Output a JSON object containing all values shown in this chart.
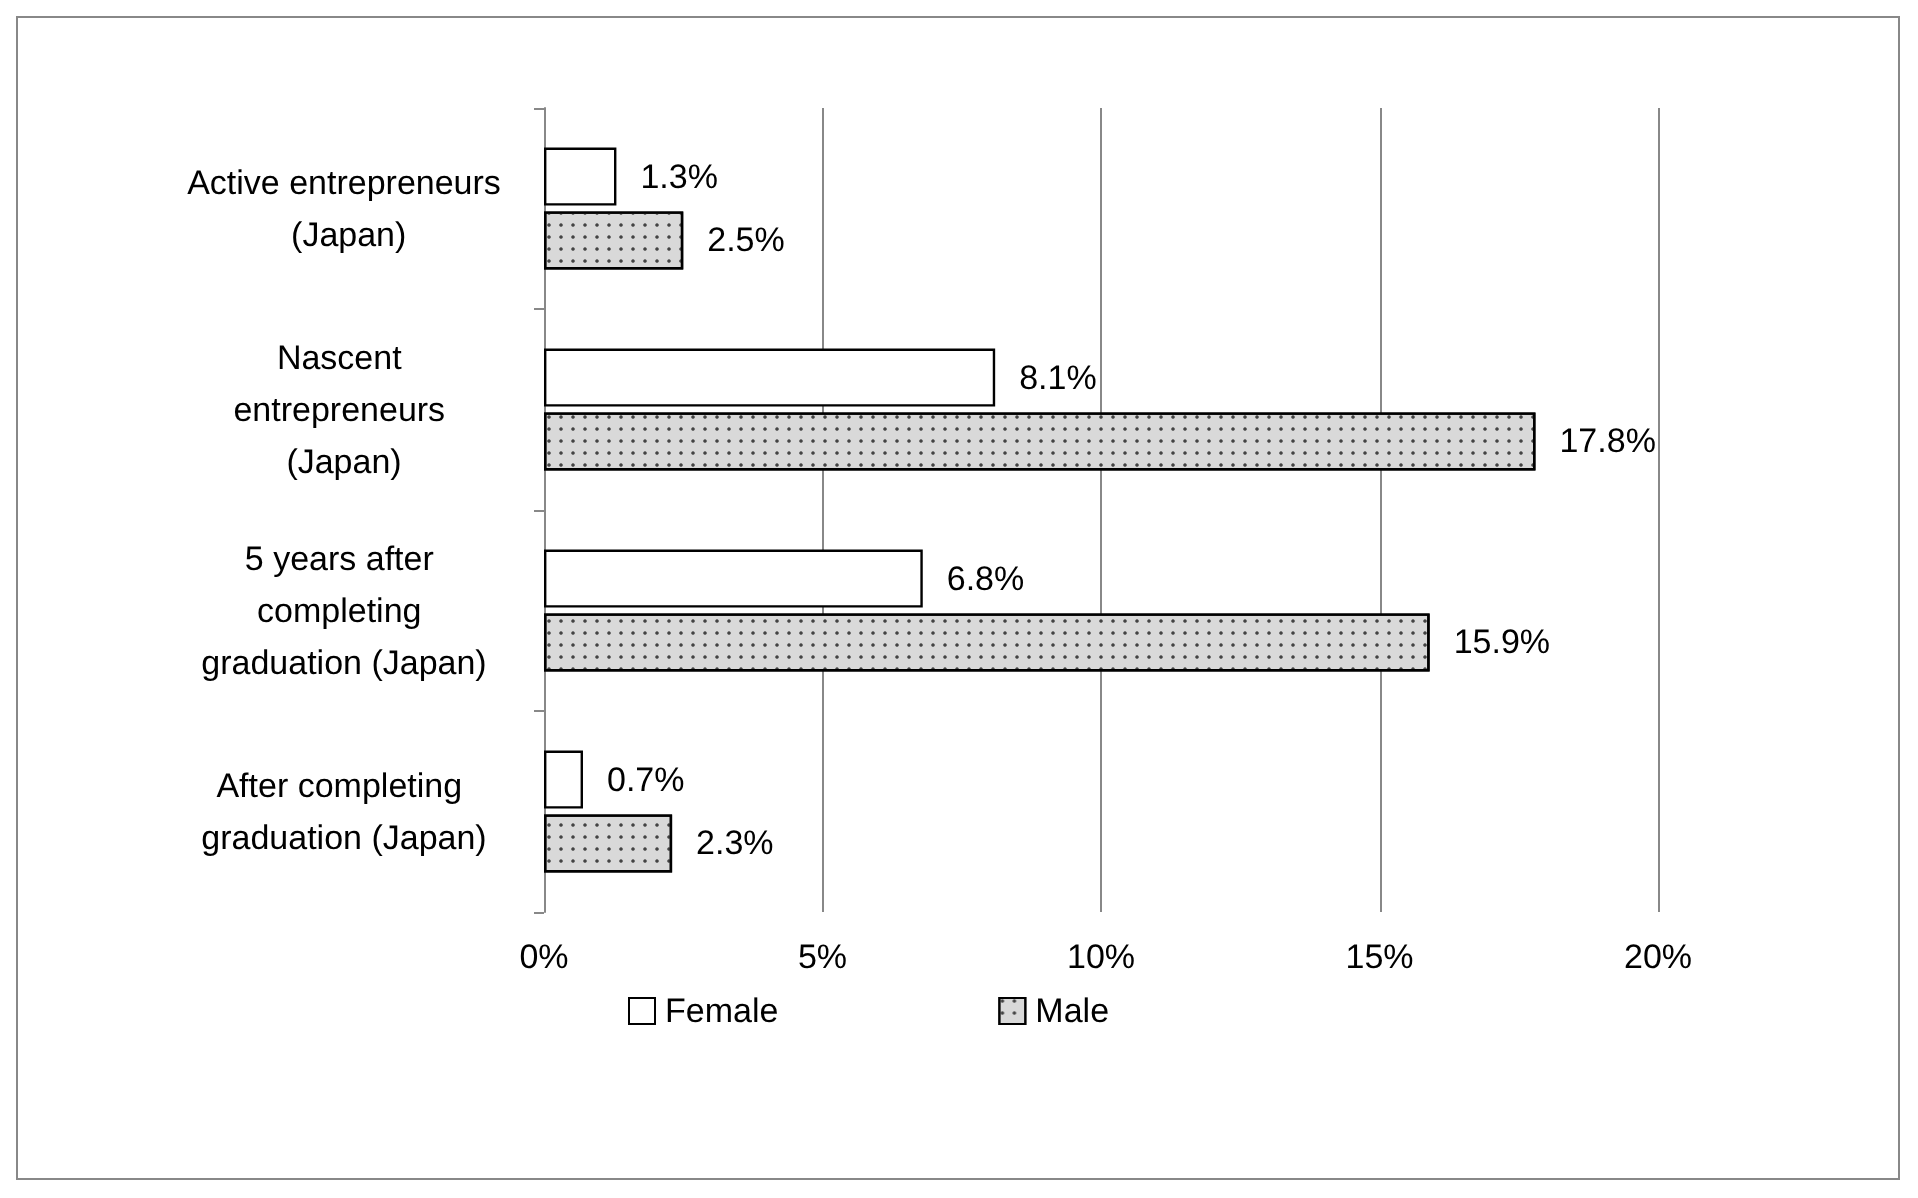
{
  "chart_data": {
    "type": "bar",
    "orientation": "horizontal",
    "categories": [
      "Active entrepreneurs (Japan)",
      "Nascent entrepreneurs (Japan)",
      "5 years after completing graduation (Japan)",
      "After completing graduation (Japan)"
    ],
    "series": [
      {
        "name": "Female",
        "color": "#ffffff",
        "values": [
          1.3,
          8.1,
          6.8,
          0.7
        ],
        "value_labels": [
          "1.3%",
          "8.1%",
          "6.8%",
          "0.7%"
        ]
      },
      {
        "name": "Male",
        "color": "#d9d9d9",
        "values": [
          2.5,
          17.8,
          15.9,
          2.3
        ],
        "value_labels": [
          "2.5%",
          "17.8%",
          "15.9%",
          "2.3%"
        ]
      }
    ],
    "xlim": [
      0,
      20
    ],
    "xticks": [
      {
        "value": 0,
        "label": "0%"
      },
      {
        "value": 5,
        "label": "5%"
      },
      {
        "value": 10,
        "label": "10%"
      },
      {
        "value": 15,
        "label": "15%"
      },
      {
        "value": 20,
        "label": "20%"
      }
    ],
    "grid": "x",
    "legend": "bottom"
  }
}
